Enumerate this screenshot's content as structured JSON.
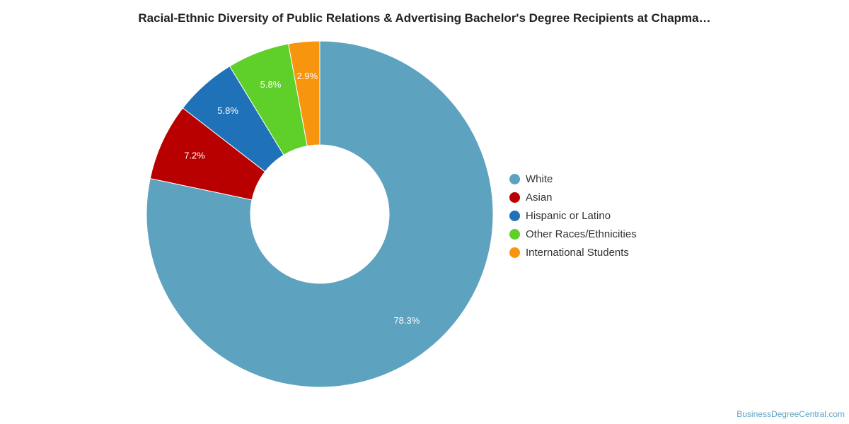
{
  "chart_data": {
    "type": "pie",
    "title": "Racial-Ethnic Diversity of Public Relations & Advertising Bachelor's Degree Recipients at Chapma…",
    "donut": true,
    "legend_position": "right",
    "slices": [
      {
        "name": "White",
        "value": 78.3,
        "label": "78.3%",
        "color": "#5da2bf"
      },
      {
        "name": "Asian",
        "value": 7.2,
        "label": "7.2%",
        "color": "#b80000"
      },
      {
        "name": "Hispanic or Latino",
        "value": 5.8,
        "label": "5.8%",
        "color": "#1f72b8"
      },
      {
        "name": "Other Races/Ethnicities",
        "value": 5.8,
        "label": "5.8%",
        "color": "#5fcf2a"
      },
      {
        "name": "International Students",
        "value": 2.9,
        "label": "2.9%",
        "color": "#f7950f"
      }
    ]
  },
  "footer": {
    "source": "BusinessDegreeCentral.com"
  }
}
